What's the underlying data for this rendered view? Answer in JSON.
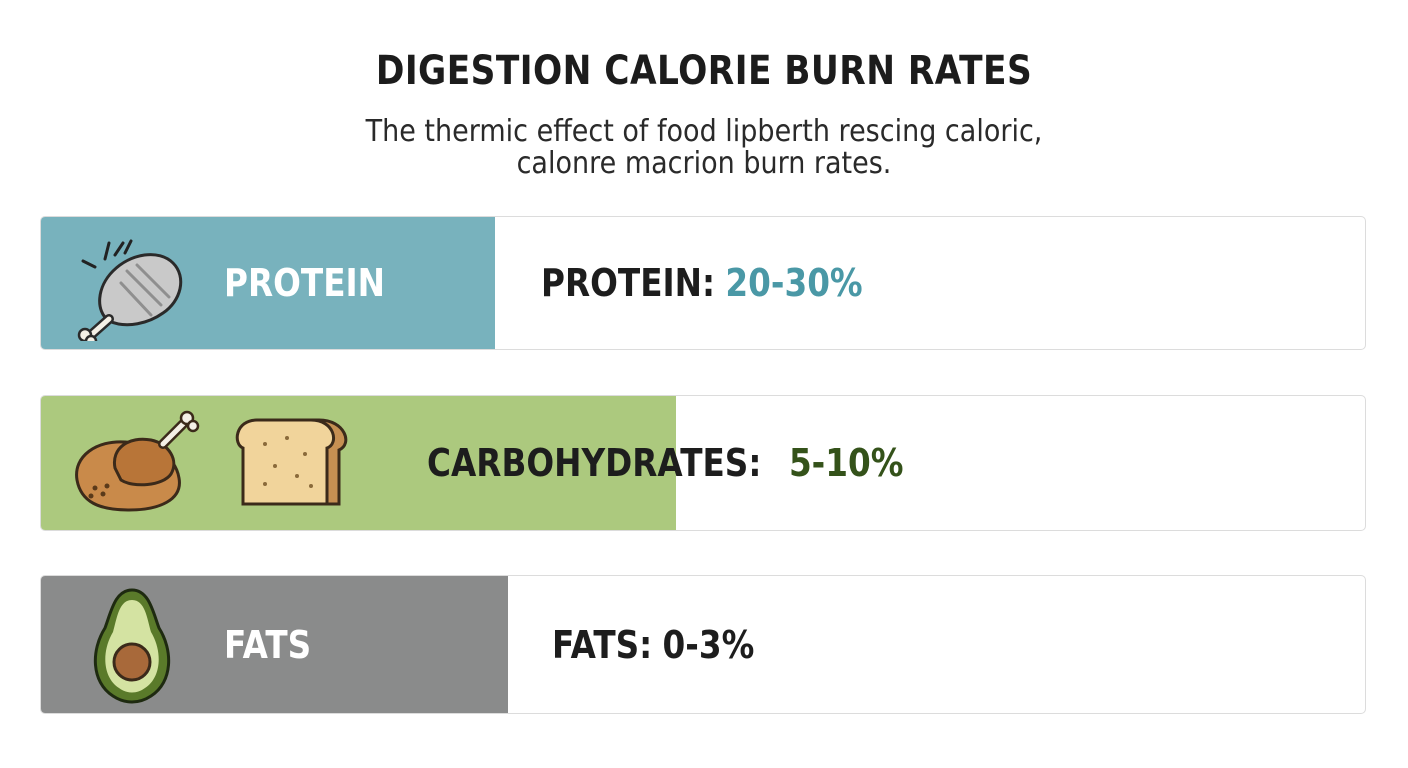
{
  "header": {
    "title": "DIGESTION CALORIE BURN RATES",
    "subtitle_line1": "The thermic effect of food lipberth rescing caloric,",
    "subtitle_line2": "calonre macrion burn rates."
  },
  "rows": [
    {
      "category": "PROTEIN",
      "stat_label": "PROTEIN:",
      "stat_value": "20-30%",
      "icons": [
        "drumstick-icon"
      ],
      "color": "#78b2bd",
      "value_color": "#4a98a6"
    },
    {
      "category": "",
      "stat_label": "CARBOHYDRATES:",
      "stat_value": "5-10%",
      "icons": [
        "roast-chicken-icon",
        "bread-icon"
      ],
      "color": "#acc97e",
      "value_color": "#34521a"
    },
    {
      "category": "FATS",
      "stat_label": "FATS:",
      "stat_value": "0-3%",
      "icons": [
        "avocado-icon"
      ],
      "color": "#8a8b8b",
      "value_color": "#1d1d1d"
    }
  ]
}
